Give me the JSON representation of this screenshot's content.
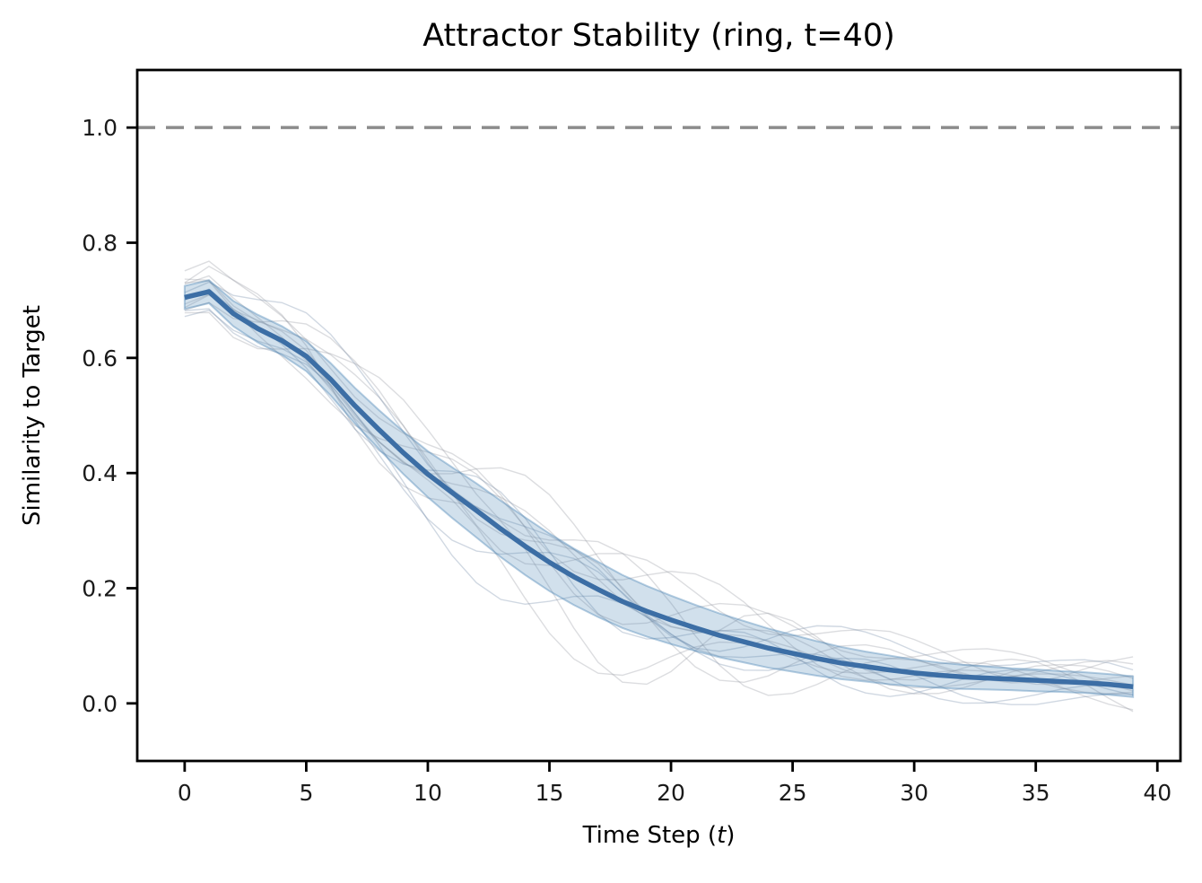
{
  "chart_data": {
    "type": "line",
    "title": "Attractor Stability (ring, t=40)",
    "ylabel": "Similarity to Target",
    "xlabel_prefix": "Time Step (",
    "xlabel_italic": "t",
    "xlabel_suffix": ")",
    "xlim": [
      -1.95,
      40.95
    ],
    "ylim": [
      -0.1,
      1.1
    ],
    "x_ticks": [
      0,
      5,
      10,
      15,
      20,
      25,
      30,
      35,
      40
    ],
    "y_ticks": [
      0.0,
      0.2,
      0.4,
      0.6,
      0.8,
      1.0
    ],
    "y_tick_labels": [
      "0.0",
      "0.2",
      "0.4",
      "0.6",
      "0.8",
      "1.0"
    ],
    "grid": false,
    "legend": "none",
    "target_line": {
      "y": 1.0,
      "style": "dashed",
      "color": "#8c8c8c",
      "width": 3.5
    },
    "series": [
      {
        "name": "mean_similarity",
        "color": "#3c6ea5",
        "width": 5.5,
        "x": [
          0,
          1,
          2,
          3,
          4,
          5,
          6,
          7,
          8,
          9,
          10,
          11,
          12,
          13,
          14,
          15,
          16,
          17,
          18,
          19,
          20,
          21,
          22,
          23,
          24,
          25,
          26,
          27,
          28,
          29,
          30,
          31,
          32,
          33,
          34,
          35,
          36,
          37,
          38,
          39
        ],
        "values": [
          0.705,
          0.715,
          0.677,
          0.651,
          0.63,
          0.603,
          0.563,
          0.517,
          0.475,
          0.435,
          0.398,
          0.366,
          0.335,
          0.303,
          0.273,
          0.245,
          0.22,
          0.198,
          0.177,
          0.16,
          0.145,
          0.131,
          0.118,
          0.107,
          0.096,
          0.087,
          0.078,
          0.07,
          0.064,
          0.058,
          0.053,
          0.049,
          0.046,
          0.044,
          0.042,
          0.04,
          0.038,
          0.036,
          0.033,
          0.029
        ]
      }
    ],
    "band": {
      "around": "mean_similarity",
      "std": [
        0.02,
        0.02,
        0.022,
        0.024,
        0.025,
        0.026,
        0.028,
        0.031,
        0.034,
        0.037,
        0.04,
        0.044,
        0.047,
        0.049,
        0.05,
        0.05,
        0.049,
        0.048,
        0.046,
        0.044,
        0.042,
        0.04,
        0.038,
        0.036,
        0.034,
        0.032,
        0.03,
        0.028,
        0.026,
        0.025,
        0.023,
        0.022,
        0.021,
        0.02,
        0.019,
        0.019,
        0.018,
        0.018,
        0.018,
        0.018
      ],
      "fill": "rgba(70,130,180,0.25)",
      "edge": "rgba(70,130,180,0.40)"
    },
    "trials": {
      "count": 13,
      "color_gray": "rgba(145,150,158,0.32)",
      "color_blue": "rgba(100,125,160,0.30)",
      "width": 1.4
    },
    "colors": {
      "spine": "#000000",
      "tick_label": "#1a1a1a",
      "background": "#ffffff"
    }
  }
}
